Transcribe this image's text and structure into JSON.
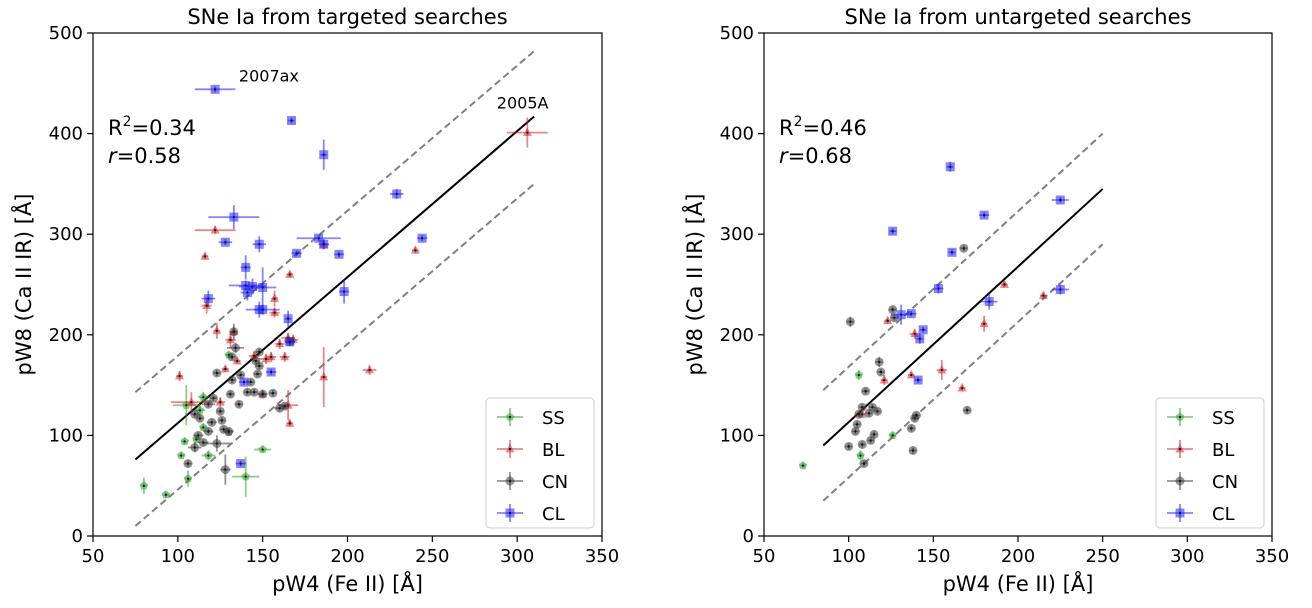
{
  "chart_data": [
    {
      "type": "scatter",
      "title": "SNe Ia from targeted searches",
      "xlabel": "pW4 (Fe II) [Å]",
      "ylabel": "pW8 (Ca II IR) [Å]",
      "xlim": [
        50,
        350
      ],
      "ylim": [
        0,
        500
      ],
      "xticks": [
        "50",
        "100",
        "150",
        "200",
        "250",
        "300",
        "350"
      ],
      "yticks": [
        "0",
        "100",
        "200",
        "300",
        "400",
        "500"
      ],
      "grid": false,
      "legend_position": "lower-right",
      "stats": {
        "r2": "R²=0.34",
        "r": "r=0.58"
      },
      "fit_line": {
        "x": [
          75,
          310
        ],
        "y": [
          76,
          417
        ]
      },
      "band_upper": {
        "x": [
          75,
          310
        ],
        "y": [
          143,
          482
        ]
      },
      "band_lower": {
        "x": [
          75,
          310
        ],
        "y": [
          10,
          350
        ]
      },
      "annotations": [
        {
          "text": "2007ax",
          "x": 136,
          "y": 452
        },
        {
          "text": "2005A",
          "x": 288,
          "y": 425
        }
      ],
      "series": [
        {
          "name": "SS",
          "color": "#2ca02c",
          "marker": "pentagon",
          "points": [
            [
              80,
              50,
              2,
              8
            ],
            [
              93,
              41,
              2,
              3
            ],
            [
              102,
              80,
              2,
              3
            ],
            [
              105,
              130,
              8,
              20
            ],
            [
              106,
              57,
              2,
              8
            ],
            [
              104,
              94,
              2,
              3
            ],
            [
              111,
              96,
              2,
              3
            ],
            [
              115,
              108,
              2,
              3
            ],
            [
              118,
              80,
              4,
              5
            ],
            [
              113,
              125,
              3,
              6
            ],
            [
              130,
              180,
              2,
              3
            ],
            [
              130,
              103,
              2,
              3
            ],
            [
              140,
              59,
              8,
              20
            ],
            [
              150,
              86,
              5,
              3
            ],
            [
              115,
              138,
              3,
              5
            ]
          ]
        },
        {
          "name": "BL",
          "color": "#d62728",
          "marker": "triangle",
          "points": [
            [
              101,
              159,
              2,
              5
            ],
            [
              108,
              133,
              12,
              10
            ],
            [
              116,
              278,
              2,
              3
            ],
            [
              117,
              229,
              3,
              8
            ],
            [
              122,
              304,
              12,
              4
            ],
            [
              123,
              204,
              2,
              8
            ],
            [
              125,
              133,
              3,
              5
            ],
            [
              128,
              166,
              2,
              3
            ],
            [
              131,
              195,
              3,
              8
            ],
            [
              133,
              203,
              2,
              3
            ],
            [
              135,
              174,
              2,
              3
            ],
            [
              145,
              179,
              3,
              5
            ],
            [
              150,
              141,
              2,
              3
            ],
            [
              152,
              176,
              4,
              5
            ],
            [
              155,
              178,
              3,
              5
            ],
            [
              157,
              236,
              2,
              8
            ],
            [
              157,
              222,
              3,
              5
            ],
            [
              160,
              191,
              3,
              5
            ],
            [
              163,
              178,
              3,
              5
            ],
            [
              165,
              197,
              4,
              5
            ],
            [
              165,
              130,
              6,
              15
            ],
            [
              166,
              112,
              2,
              3
            ],
            [
              166,
              260,
              2,
              3
            ],
            [
              168,
              195,
              3,
              5
            ],
            [
              186,
              158,
              2,
              30
            ],
            [
              186,
              290,
              3,
              5
            ],
            [
              213,
              165,
              4,
              5
            ],
            [
              240,
              284,
              2,
              3
            ],
            [
              306,
              401,
              12,
              15
            ]
          ]
        },
        {
          "name": "CN",
          "color": "#3a3a3a",
          "marker": "circle",
          "points": [
            [
              106,
              72,
              2,
              3
            ],
            [
              110,
              88,
              4,
              5
            ],
            [
              112,
              100,
              3,
              3
            ],
            [
              110,
              121,
              2,
              3
            ],
            [
              113,
              117,
              2,
              3
            ],
            [
              115,
              93,
              3,
              3
            ],
            [
              118,
              104,
              3,
              3
            ],
            [
              118,
              131,
              4,
              3
            ],
            [
              120,
              113,
              3,
              3
            ],
            [
              121,
              137,
              2,
              3
            ],
            [
              123,
              162,
              2,
              3
            ],
            [
              123,
              92,
              8,
              8
            ],
            [
              125,
              124,
              2,
              3
            ],
            [
              126,
              115,
              2,
              3
            ],
            [
              127,
              106,
              2,
              3
            ],
            [
              128,
              66,
              3,
              15
            ],
            [
              130,
              104,
              3,
              3
            ],
            [
              131,
              141,
              2,
              3
            ],
            [
              132,
              155,
              2,
              3
            ],
            [
              132,
              178,
              2,
              3
            ],
            [
              133,
              203,
              2,
              8
            ],
            [
              134,
              187,
              5,
              5
            ],
            [
              136,
              131,
              2,
              3
            ],
            [
              137,
              160,
              2,
              3
            ],
            [
              141,
              143,
              2,
              3
            ],
            [
              143,
              153,
              2,
              3
            ],
            [
              145,
              143,
              2,
              3
            ],
            [
              146,
              174,
              2,
              3
            ],
            [
              147,
              161,
              2,
              3
            ],
            [
              148,
              169,
              2,
              3
            ],
            [
              148,
              183,
              2,
              3
            ],
            [
              150,
              141,
              3,
              3
            ],
            [
              156,
              142,
              2,
              3
            ],
            [
              160,
              127,
              3,
              3
            ],
            [
              163,
              129,
              2,
              3
            ],
            [
              166,
              193,
              3,
              3
            ]
          ]
        },
        {
          "name": "CL",
          "color": "#1f1fff",
          "marker": "square",
          "points": [
            [
              122,
              444,
              12,
              3
            ],
            [
              167,
              413,
              2,
              3
            ],
            [
              186,
              379,
              2,
              15
            ],
            [
              118,
              236,
              4,
              8
            ],
            [
              128,
              292,
              4,
              3
            ],
            [
              133,
              317,
              15,
              12
            ],
            [
              140,
              267,
              3,
              12
            ],
            [
              140,
              249,
              10,
              5
            ],
            [
              141,
              242,
              4,
              8
            ],
            [
              144,
              248,
              8,
              8
            ],
            [
              148,
              290,
              4,
              8
            ],
            [
              148,
              225,
              3,
              8
            ],
            [
              150,
              247,
              8,
              20
            ],
            [
              150,
              225,
              10,
              5
            ],
            [
              137,
              72,
              3,
              3
            ],
            [
              139,
              153,
              3,
              3
            ],
            [
              155,
              163,
              3,
              3
            ],
            [
              165,
              216,
              2,
              8
            ],
            [
              166,
              193,
              3,
              3
            ],
            [
              170,
              281,
              3,
              3
            ],
            [
              183,
              296,
              13,
              3
            ],
            [
              186,
              290,
              3,
              5
            ],
            [
              195,
              280,
              3,
              3
            ],
            [
              198,
              243,
              3,
              12
            ],
            [
              229,
              340,
              4,
              5
            ],
            [
              244,
              296,
              3,
              3
            ]
          ]
        }
      ]
    },
    {
      "type": "scatter",
      "title": "SNe Ia from untargeted searches",
      "xlabel": "pW4 (Fe II) [Å]",
      "ylabel": "pW8 (Ca II IR) [Å]",
      "xlim": [
        50,
        350
      ],
      "ylim": [
        0,
        500
      ],
      "xticks": [
        "50",
        "100",
        "150",
        "200",
        "250",
        "300",
        "350"
      ],
      "yticks": [
        "0",
        "100",
        "200",
        "300",
        "400",
        "500"
      ],
      "grid": false,
      "legend_position": "lower-right",
      "stats": {
        "r2": "R²=0.46",
        "r": "r=0.68"
      },
      "fit_line": {
        "x": [
          85,
          250
        ],
        "y": [
          90,
          345
        ]
      },
      "band_upper": {
        "x": [
          85,
          250
        ],
        "y": [
          145,
          400
        ]
      },
      "band_lower": {
        "x": [
          85,
          250
        ],
        "y": [
          35,
          290
        ]
      },
      "annotations": [],
      "series": [
        {
          "name": "SS",
          "color": "#2ca02c",
          "marker": "pentagon",
          "points": [
            [
              73,
              70,
              2,
              3
            ],
            [
              106,
              160,
              2,
              5
            ],
            [
              107,
              80,
              2,
              5
            ],
            [
              126,
              100,
              2,
              3
            ]
          ]
        },
        {
          "name": "BL",
          "color": "#d62728",
          "marker": "triangle",
          "points": [
            [
              108,
              121,
              2,
              3
            ],
            [
              121,
              155,
              2,
              5
            ],
            [
              123,
              214,
              2,
              3
            ],
            [
              137,
              160,
              2,
              3
            ],
            [
              139,
              201,
              3,
              5
            ],
            [
              155,
              165,
              3,
              10
            ],
            [
              167,
              147,
              2,
              3
            ],
            [
              180,
              211,
              2,
              8
            ],
            [
              192,
              250,
              2,
              3
            ],
            [
              215,
              239,
              2,
              3
            ]
          ]
        },
        {
          "name": "CN",
          "color": "#3a3a3a",
          "marker": "circle",
          "points": [
            [
              100,
              89,
              2,
              3
            ],
            [
              101,
              213,
              2,
              5
            ],
            [
              104,
              104,
              2,
              3
            ],
            [
              105,
              111,
              2,
              3
            ],
            [
              106,
              121,
              2,
              3
            ],
            [
              108,
              91,
              2,
              3
            ],
            [
              108,
              128,
              2,
              3
            ],
            [
              109,
              72,
              2,
              3
            ],
            [
              110,
              144,
              2,
              3
            ],
            [
              112,
              122,
              2,
              3
            ],
            [
              113,
              95,
              2,
              3
            ],
            [
              114,
              128,
              2,
              3
            ],
            [
              115,
              101,
              2,
              3
            ],
            [
              117,
              124,
              2,
              3
            ],
            [
              118,
              173,
              2,
              5
            ],
            [
              119,
              163,
              2,
              3
            ],
            [
              126,
              225,
              2,
              3
            ],
            [
              127,
              217,
              2,
              3
            ],
            [
              137,
              107,
              2,
              3
            ],
            [
              138,
              85,
              2,
              3
            ],
            [
              139,
              117,
              2,
              3
            ],
            [
              140,
              120,
              2,
              3
            ],
            [
              168,
              286,
              2,
              3
            ],
            [
              170,
              125,
              2,
              3
            ]
          ]
        },
        {
          "name": "CL",
          "color": "#1f1fff",
          "marker": "square",
          "points": [
            [
              126,
              303,
              2,
              3
            ],
            [
              131,
              220,
              6,
              10
            ],
            [
              137,
              221,
              3,
              3
            ],
            [
              141,
              155,
              2,
              3
            ],
            [
              142,
              196,
              2,
              5
            ],
            [
              144,
              205,
              2,
              3
            ],
            [
              153,
              246,
              3,
              5
            ],
            [
              160,
              367,
              2,
              5
            ],
            [
              161,
              282,
              2,
              3
            ],
            [
              180,
              319,
              3,
              3
            ],
            [
              183,
              233,
              5,
              8
            ],
            [
              225,
              245,
              5,
              5
            ],
            [
              225,
              334,
              5,
              3
            ]
          ]
        }
      ]
    }
  ]
}
